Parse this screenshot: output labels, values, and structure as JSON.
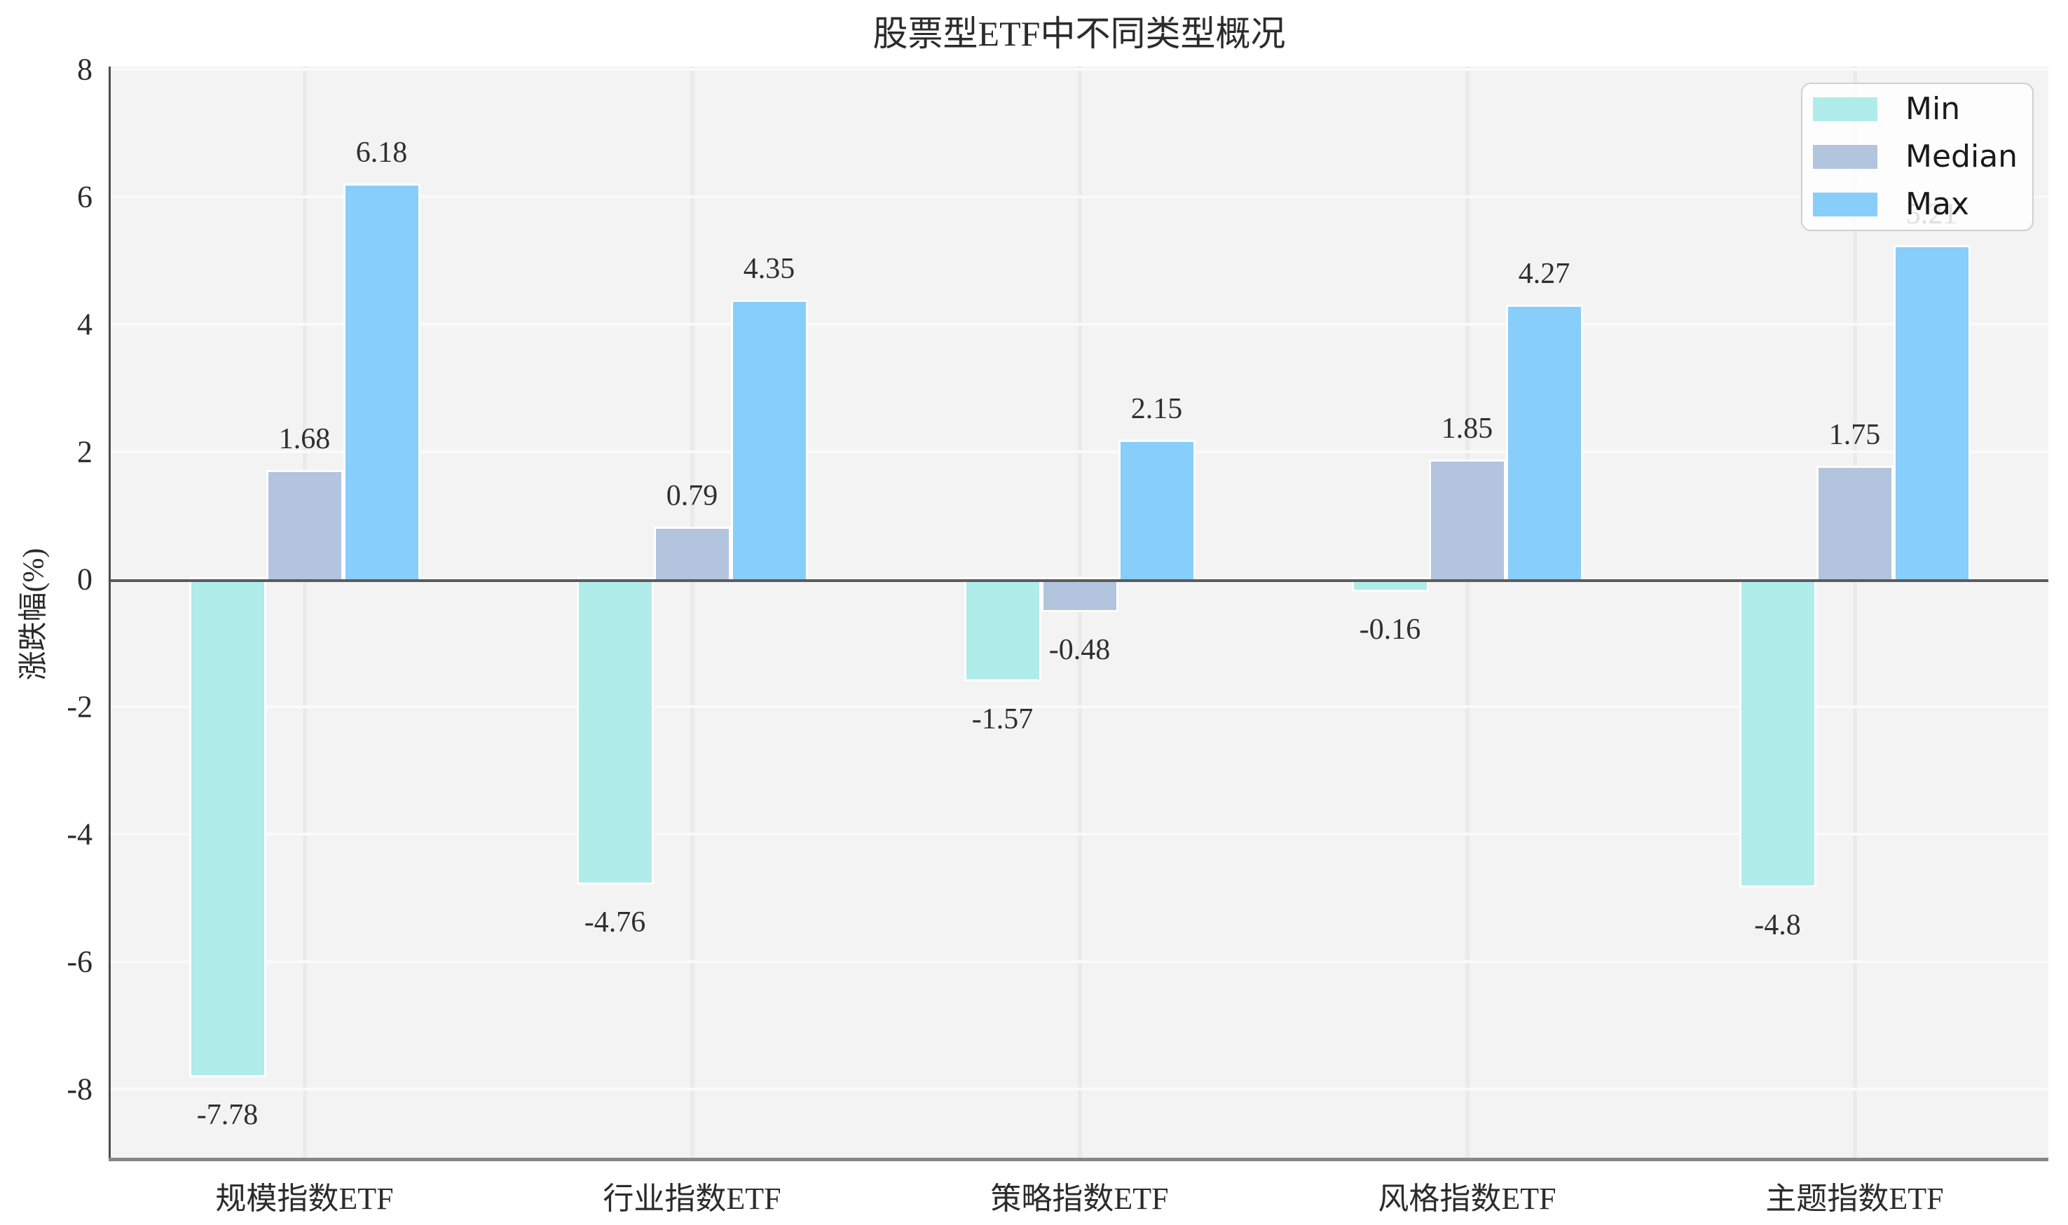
{
  "chart_data": {
    "type": "bar",
    "title": "股票型ETF中不同类型概况",
    "ylabel": "涨跌幅(%)",
    "xlabel": "",
    "categories": [
      "规模指数ETF",
      "行业指数ETF",
      "策略指数ETF",
      "风格指数ETF",
      "主题指数ETF"
    ],
    "series": [
      {
        "name": "Min",
        "color": "#afecea",
        "values": [
          -7.78,
          -4.76,
          -1.57,
          -0.16,
          -4.8
        ],
        "labels": [
          "-7.78",
          "-4.76",
          "-1.57",
          "-0.16",
          "-4.8"
        ]
      },
      {
        "name": "Median",
        "color": "#b2c4de",
        "values": [
          1.68,
          0.79,
          -0.48,
          1.85,
          1.75
        ],
        "labels": [
          "1.68",
          "0.79",
          "-0.48",
          "1.85",
          "1.75"
        ]
      },
      {
        "name": "Max",
        "color": "#87cefa",
        "values": [
          6.18,
          4.35,
          2.15,
          4.27,
          5.21
        ],
        "labels": [
          "6.18",
          "4.35",
          "2.15",
          "4.27",
          "5.21"
        ]
      }
    ],
    "yticks": [
      8,
      6,
      4,
      2,
      0,
      -2,
      -4,
      -6,
      -8
    ],
    "ylim": [
      -9.1,
      8.1
    ],
    "grid": true,
    "legend_position": "upper right",
    "colors": {
      "plot_bg": "#f2f3f2",
      "h_grid": "#fafafa",
      "v_grid": "#eaeaea",
      "zero_line": "#5c5c5c",
      "left_spine": "#4d4d4d",
      "bottom_spine": "#868686",
      "bar_edge": "#ffffff",
      "text": "#2b2b2b"
    }
  }
}
